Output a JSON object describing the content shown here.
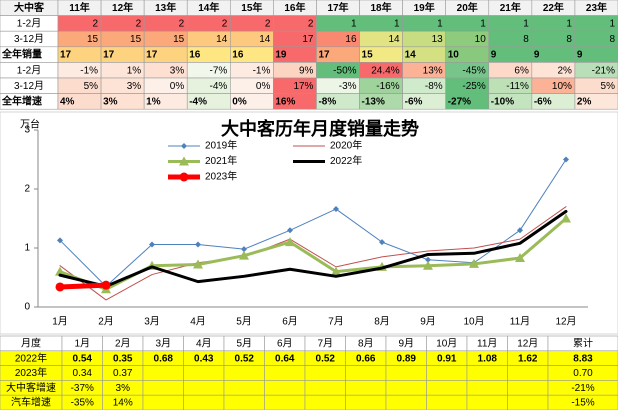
{
  "top_table": {
    "header": [
      "大中客",
      "11年",
      "12年",
      "13年",
      "14年",
      "15年",
      "16年",
      "17年",
      "18年",
      "19年",
      "20年",
      "21年",
      "22年",
      "23年"
    ],
    "rows": [
      {
        "label": "1-2月",
        "cells": [
          "2",
          "2",
          "2",
          "2",
          "2",
          "2",
          "1",
          "1",
          "1",
          "1",
          "1",
          "1",
          "1"
        ],
        "colors": [
          "#f8696b",
          "#f8696b",
          "#f8696b",
          "#f8696b",
          "#f8696b",
          "#f8696b",
          "#63be7b",
          "#63be7b",
          "#63be7b",
          "#63be7b",
          "#63be7b",
          "#63be7b",
          "#63be7b"
        ]
      },
      {
        "label": "3-12月",
        "cells": [
          "15",
          "15",
          "15",
          "14",
          "14",
          "17",
          "16",
          "14",
          "13",
          "10",
          "8",
          "8",
          "8"
        ],
        "colors": [
          "#fba97a",
          "#fba97a",
          "#fba97a",
          "#fdc97e",
          "#fdc97e",
          "#f8696b",
          "#f98a71",
          "#e2e383",
          "#c8dd81",
          "#8fcb7d",
          "#63be7b",
          "#63be7b",
          "#63be7b"
        ]
      },
      {
        "label": "全年销量",
        "cells": [
          "17",
          "17",
          "17",
          "16",
          "16",
          "19",
          "17",
          "15",
          "14",
          "10",
          "9",
          "9",
          "9"
        ],
        "colors": [
          "#fdd380",
          "#fdd380",
          "#fdd380",
          "#fee683",
          "#fee683",
          "#f8696b",
          "#fba97a",
          "#f2e884",
          "#d4e082",
          "#88c97d",
          "#63be7b",
          "#63be7b",
          "#63be7b"
        ]
      },
      {
        "label": "1-2月",
        "cells": [
          "-1%",
          "1%",
          "3%",
          "-7%",
          "-1%",
          "9%",
          "-50%",
          "24.4%",
          "13%",
          "-45%",
          "6%",
          "2%",
          "-21%"
        ],
        "colors": [
          "#fdeae0",
          "#fde5d9",
          "#fde0d2",
          "#f2f7ec",
          "#fdeae0",
          "#fcd4c2",
          "#63be7b",
          "#f8696b",
          "#fbb297",
          "#78c58c",
          "#fcd9c9",
          "#fde4d7",
          "#b9dfb9"
        ]
      },
      {
        "label": "3-12月",
        "cells": [
          "5%",
          "3%",
          "0%",
          "-4%",
          "0%",
          "17%",
          "-3%",
          "-16%",
          "-8%",
          "-25%",
          "-11%",
          "10%",
          "5%"
        ],
        "colors": [
          "#fcdccc",
          "#fde3d5",
          "#fdf0e9",
          "#e6f2de",
          "#fdf0e9",
          "#f8696b",
          "#ecf5e6",
          "#9ed39c",
          "#d0eacc",
          "#63be7b",
          "#bde0b7",
          "#fbb297",
          "#fcdccc"
        ]
      },
      {
        "label": "全年增速",
        "cells": [
          "4%",
          "3%",
          "1%",
          "-4%",
          "0%",
          "16%",
          "-8%",
          "-13%",
          "-6%",
          "-27%",
          "-10%",
          "-6%",
          "2%"
        ],
        "colors": [
          "#fcdccc",
          "#fde1d3",
          "#fdebe2",
          "#e6f2de",
          "#fdf0e9",
          "#f8696b",
          "#cfe9cb",
          "#aed9aa",
          "#dcefd5",
          "#63be7b",
          "#c4e3bf",
          "#dcefd5",
          "#fde6da"
        ]
      }
    ]
  },
  "chart_data": {
    "type": "line",
    "title": "大中客历年月度销量走势",
    "y_label": "万台",
    "categories": [
      "1月",
      "2月",
      "3月",
      "4月",
      "5月",
      "6月",
      "7月",
      "8月",
      "9月",
      "10月",
      "11月",
      "12月"
    ],
    "ylim": [
      0,
      3
    ],
    "yticks": [
      0,
      1,
      2,
      3
    ],
    "series": [
      {
        "name": "2019年",
        "color": "#4f81bd",
        "values": [
          1.13,
          0.35,
          1.06,
          1.06,
          0.98,
          1.3,
          1.66,
          1.1,
          0.8,
          0.75,
          1.3,
          2.5
        ]
      },
      {
        "name": "2020年",
        "color": "#c0504d",
        "values": [
          0.7,
          0.12,
          0.55,
          0.75,
          0.85,
          1.15,
          0.68,
          0.85,
          0.95,
          1.0,
          1.15,
          1.7
        ]
      },
      {
        "name": "2021年",
        "color": "#9bbb59",
        "values": [
          0.6,
          0.3,
          0.7,
          0.72,
          0.87,
          1.1,
          0.6,
          0.68,
          0.7,
          0.73,
          0.83,
          1.5
        ]
      },
      {
        "name": "2022年",
        "color": "#000000",
        "values": [
          0.54,
          0.35,
          0.68,
          0.43,
          0.52,
          0.64,
          0.52,
          0.66,
          0.89,
          0.91,
          1.08,
          1.62
        ]
      },
      {
        "name": "2023年",
        "color": "#ff0000",
        "values": [
          0.34,
          0.37,
          null,
          null,
          null,
          null,
          null,
          null,
          null,
          null,
          null,
          null
        ]
      }
    ]
  },
  "bottom_table": {
    "header": [
      "月度",
      "1月",
      "2月",
      "3月",
      "4月",
      "5月",
      "6月",
      "7月",
      "8月",
      "9月",
      "10月",
      "11月",
      "12月",
      "累计"
    ],
    "rows": [
      {
        "label": "2022年",
        "cells": [
          "0.54",
          "0.35",
          "0.68",
          "0.43",
          "0.52",
          "0.64",
          "0.52",
          "0.66",
          "0.89",
          "0.91",
          "1.08",
          "1.62",
          "8.83"
        ]
      },
      {
        "label": "2023年",
        "cells": [
          "0.34",
          "0.37",
          null,
          null,
          null,
          null,
          null,
          null,
          null,
          null,
          null,
          null,
          "0.70"
        ]
      },
      {
        "label": "大中客增速",
        "cells": [
          "-37%",
          "3%",
          null,
          null,
          null,
          null,
          null,
          null,
          null,
          null,
          null,
          null,
          "-21%"
        ]
      },
      {
        "label": "汽车增速",
        "cells": [
          "-35%",
          "14%",
          null,
          null,
          null,
          null,
          null,
          null,
          null,
          null,
          null,
          null,
          "-15%"
        ]
      }
    ]
  }
}
